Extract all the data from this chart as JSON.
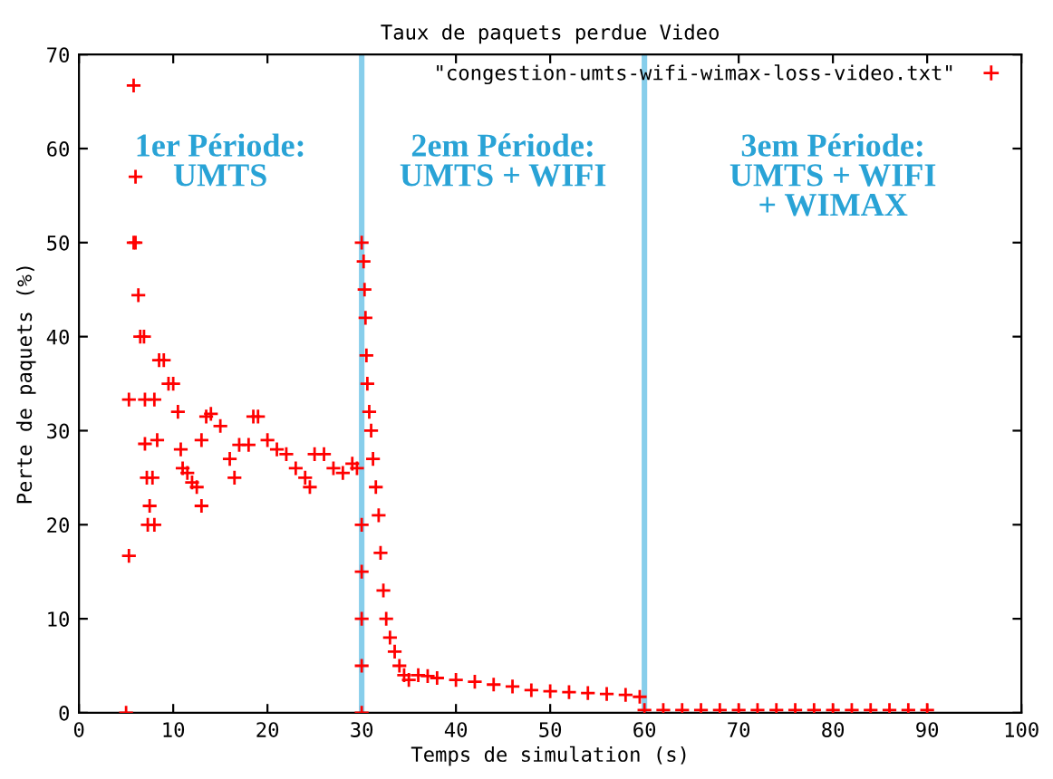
{
  "chart_data": {
    "type": "scatter",
    "title": "Taux de paquets perdue Video",
    "xlabel": "Temps de simulation (s)",
    "ylabel": "Perte de paquets (%)",
    "xlim": [
      0,
      100
    ],
    "xticks": [
      0,
      10,
      20,
      30,
      40,
      50,
      60,
      70,
      80,
      90,
      100
    ],
    "ylim": [
      0,
      70
    ],
    "yticks": [
      0,
      10,
      20,
      30,
      40,
      50,
      60,
      70
    ],
    "grid": false,
    "legend": "top right",
    "marker": "cross",
    "series": [
      {
        "name": "\"congestion-umts-wifi-wimax-loss-video.txt\"",
        "color": "#ff0000",
        "x": [
          5,
          5.3,
          5.3,
          5.8,
          5.8,
          6,
          6.3,
          6,
          6.5,
          6.9,
          7,
          7,
          7.2,
          7.3,
          7.5,
          7.8,
          8,
          8,
          8.3,
          8.5,
          9,
          9.5,
          10,
          10.5,
          10.8,
          11,
          11.5,
          12,
          12.5,
          13,
          13,
          13.5,
          14,
          15,
          16,
          16.5,
          17,
          18,
          18.5,
          19,
          20,
          21,
          22,
          23,
          24,
          24.5,
          25,
          26,
          27,
          28,
          29,
          29.5,
          30,
          30,
          30,
          30,
          30,
          30,
          30.2,
          30.3,
          30.4,
          30.5,
          30.6,
          30.8,
          31,
          31.2,
          31.5,
          31.8,
          32,
          32.3,
          32.6,
          33,
          33.5,
          34,
          34.5,
          35,
          36,
          37,
          38,
          40,
          42,
          44,
          46,
          48,
          50,
          52,
          54,
          56,
          58,
          59.5,
          60,
          62,
          64,
          66,
          68,
          70,
          72,
          74,
          76,
          78,
          80,
          82,
          84,
          86,
          88,
          90
        ],
        "values": [
          0,
          16.7,
          33.3,
          66.7,
          50,
          57,
          44.4,
          50,
          40,
          40,
          33.3,
          28.6,
          25,
          20,
          22,
          25,
          33.3,
          20,
          29,
          37.5,
          37.5,
          35,
          35,
          32,
          28,
          26,
          25.5,
          24.5,
          24,
          22,
          29,
          31.5,
          31.8,
          30.5,
          27,
          25,
          28.5,
          28.5,
          31.5,
          31.5,
          29,
          28,
          27.5,
          26,
          25,
          24,
          27.5,
          27.5,
          26,
          25.5,
          26.5,
          26,
          0,
          5,
          10,
          15,
          20,
          50,
          48,
          45,
          42,
          38,
          35,
          32,
          30,
          27,
          24,
          21,
          17,
          13,
          10,
          8,
          6.5,
          5,
          4,
          3.5,
          4,
          3.9,
          3.7,
          3.5,
          3.3,
          3,
          2.8,
          2.4,
          2.3,
          2.2,
          2.1,
          2,
          1.9,
          1.7,
          0.3,
          0.3,
          0.3,
          0.3,
          0.3,
          0.3,
          0.3,
          0.3,
          0.3,
          0.3,
          0.3,
          0.3,
          0.3,
          0.3,
          0.3,
          0.3
        ]
      }
    ],
    "ref_lines": [
      {
        "axis": "x",
        "value": 30,
        "color": "#87ceeb"
      },
      {
        "axis": "x",
        "value": 60,
        "color": "#87ceeb"
      }
    ],
    "annotations": [
      "1er Période:\nUMTS",
      "2em Période:\nUMTS + WIFI",
      "3em Période:\nUMTS + WIFI\n+ WIMAX"
    ]
  }
}
